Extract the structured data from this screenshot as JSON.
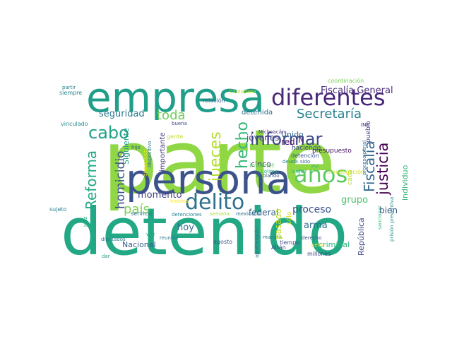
{
  "words": [
    {
      "text": "parte",
      "color": "#8fd744"
    },
    {
      "text": "detenido",
      "color": "#22a884"
    },
    {
      "text": "persona",
      "color": "#3b528b"
    },
    {
      "text": "empresa",
      "color": "#1f9e89"
    },
    {
      "text": "diferentes",
      "color": "#482878"
    },
    {
      "text": "años",
      "color": "#5ec962"
    },
    {
      "text": "delito",
      "color": "#2c728e"
    },
    {
      "text": "gobierno",
      "color": "#21918c"
    },
    {
      "text": "informar",
      "color": "#3e4989"
    },
    {
      "text": "hecho",
      "color": "#35b779"
    },
    {
      "text": "jueces",
      "color": "#b5de2b"
    },
    {
      "text": "Secretaría",
      "color": "#26828e"
    },
    {
      "text": "justicia",
      "color": "#440154"
    },
    {
      "text": "Fiscalía",
      "color": "#31688e"
    },
    {
      "text": "cabo",
      "color": "#1fa187"
    },
    {
      "text": "toda",
      "color": "#6ece58"
    },
    {
      "text": "Reforma",
      "color": "#22a884"
    },
    {
      "text": "homicidio",
      "color": "#3b528b"
    },
    {
      "text": "país",
      "color": "#7ad151"
    },
    {
      "text": "Fiscalía General",
      "color": "#472d7b"
    },
    {
      "text": "seguridad",
      "color": "#2a788e"
    },
    {
      "text": "momento",
      "color": "#433e85"
    },
    {
      "text": "federal",
      "color": "#355f8d"
    },
    {
      "text": "proceso",
      "color": "#3b528b"
    },
    {
      "text": "individuo",
      "color": "#35b779"
    },
    {
      "text": "grupo",
      "color": "#4ac16d"
    },
    {
      "text": "arma",
      "color": "#2c728e"
    },
    {
      "text": "hoy",
      "color": "#31688e"
    },
    {
      "text": "pasado",
      "color": "#bddf26"
    },
    {
      "text": "bien",
      "color": "#3b528b"
    },
    {
      "text": "Nacional",
      "color": "#365c8d"
    },
    {
      "text": "criminal",
      "color": "#2fb47c"
    },
    {
      "text": "República",
      "color": "#3e4a89"
    },
    {
      "text": "Unido",
      "color": "#31688e"
    },
    {
      "text": "jóvenes",
      "color": "#414487"
    },
    {
      "text": "cinco",
      "color": "#46327e"
    },
    {
      "text": "red",
      "color": "#471063"
    },
    {
      "text": "internet",
      "color": "#5ec962"
    },
    {
      "text": "N",
      "color": "#482173"
    },
    {
      "text": "detenida",
      "color": "#2d708e"
    },
    {
      "text": "presupuesto",
      "color": "#481467"
    },
    {
      "text": "haciendo",
      "color": "#424086"
    },
    {
      "text": "detención",
      "color": "#38598c"
    },
    {
      "text": "Siguiente",
      "color": "#1fa088"
    },
    {
      "text": "importante",
      "color": "#453781"
    },
    {
      "text": "gente",
      "color": "#bddf26"
    },
    {
      "text": "vinculado",
      "color": "#238a8d"
    },
    {
      "text": "siempre",
      "color": "#24868e"
    },
    {
      "text": "partir",
      "color": "#26828e"
    },
    {
      "text": "coordinación",
      "color": "#75d054"
    },
    {
      "text": "relación",
      "color": "#31688e"
    },
    {
      "text": "Ciudadano",
      "color": "#c2df23"
    },
    {
      "text": "Michoacán",
      "color": "#46307e"
    },
    {
      "text": "Colima",
      "color": "#2db27d"
    },
    {
      "text": "hijo",
      "color": "#32648e"
    },
    {
      "text": "INE",
      "color": "#482475"
    },
    {
      "text": "pueblo",
      "color": "#3f4889"
    },
    {
      "text": "proceso penal",
      "color": "#31688e"
    },
    {
      "text": "buena",
      "color": "#3e4989"
    },
    {
      "text": "hablando",
      "color": "#34618d"
    },
    {
      "text": "sido",
      "color": "#2d708e"
    },
    {
      "text": "deuda",
      "color": "#287d8e"
    },
    {
      "text": "millones",
      "color": "#414487"
    },
    {
      "text": "investigación",
      "color": "#c8e020"
    },
    {
      "text": "seguir",
      "color": "#35b779"
    },
    {
      "text": "cada",
      "color": "#b8de29"
    },
    {
      "text": "tiempo",
      "color": "#3d4d8a"
    },
    {
      "text": "manera",
      "color": "#2a778e"
    },
    {
      "text": "historia",
      "color": "#fde725"
    },
    {
      "text": "servicio",
      "color": "#2c728e"
    },
    {
      "text": "detenciones",
      "color": "#25848e"
    },
    {
      "text": "semana",
      "color": "#a5db36"
    },
    {
      "text": "mexicano",
      "color": "#2e6f8e"
    },
    {
      "text": "sólo",
      "color": "#d2e21b"
    },
    {
      "text": "sujeto",
      "color": "#25858e"
    },
    {
      "text": "vez",
      "color": "#20a386"
    },
    {
      "text": "reunión",
      "color": "#2a788e"
    },
    {
      "text": "agosto",
      "color": "#39568c"
    },
    {
      "text": "juez",
      "color": "#22a785"
    },
    {
      "text": "diputados",
      "color": "#2a788e"
    },
    {
      "text": "dar",
      "color": "#1f9a8a"
    },
    {
      "text": "aprehensión",
      "color": "#2c738e"
    },
    {
      "text": "Altán",
      "color": "#3e4989"
    },
    {
      "text": "derecho",
      "color": "#3a548c"
    },
    {
      "text": "peso",
      "color": "#fde725"
    },
    {
      "text": "dispositivo",
      "color": "#2d718e"
    },
    {
      "text": "sancionar",
      "color": "#35b779"
    },
    {
      "text": "prisión preventiva",
      "color": "#21918c"
    },
    {
      "text": "disposición",
      "color": "#e5e419"
    }
  ]
}
